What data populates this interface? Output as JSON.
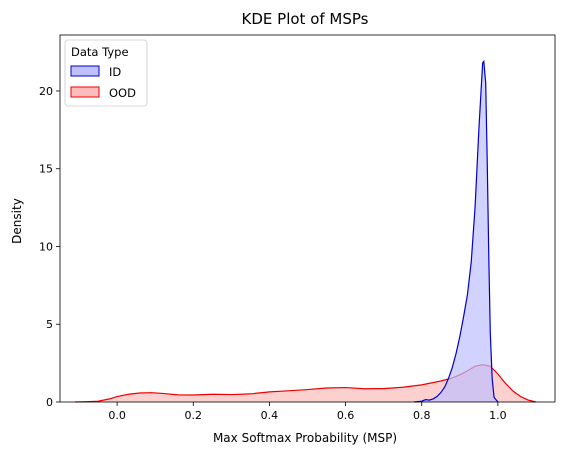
{
  "chart_data": {
    "type": "area",
    "title": "KDE Plot of MSPs",
    "xlabel": "Max Softmax Probability (MSP)",
    "ylabel": "Density",
    "xlim": [
      -0.15,
      1.15
    ],
    "ylim": [
      0,
      23.6
    ],
    "xticks": [
      {
        "value": 0.0,
        "label": "0.0"
      },
      {
        "value": 0.2,
        "label": "0.2"
      },
      {
        "value": 0.4,
        "label": "0.4"
      },
      {
        "value": 0.6,
        "label": "0.6"
      },
      {
        "value": 0.8,
        "label": "0.8"
      },
      {
        "value": 1.0,
        "label": "1.0"
      }
    ],
    "yticks": [
      {
        "value": 0,
        "label": "0"
      },
      {
        "value": 5,
        "label": "5"
      },
      {
        "value": 10,
        "label": "10"
      },
      {
        "value": 15,
        "label": "15"
      },
      {
        "value": 20,
        "label": "20"
      }
    ],
    "legend": {
      "title": "Data Type",
      "placement": "top-left"
    },
    "grid": false,
    "series": [
      {
        "name": "ID",
        "color": "#0000cc",
        "fill": "#bfbffe",
        "points": [
          [
            0.78,
            0.0
          ],
          [
            0.8,
            0.05
          ],
          [
            0.81,
            0.15
          ],
          [
            0.82,
            0.12
          ],
          [
            0.83,
            0.2
          ],
          [
            0.84,
            0.35
          ],
          [
            0.85,
            0.6
          ],
          [
            0.86,
            0.95
          ],
          [
            0.87,
            1.5
          ],
          [
            0.88,
            2.2
          ],
          [
            0.89,
            3.1
          ],
          [
            0.9,
            4.2
          ],
          [
            0.91,
            5.5
          ],
          [
            0.92,
            6.9
          ],
          [
            0.93,
            9.0
          ],
          [
            0.94,
            12.5
          ],
          [
            0.95,
            17.5
          ],
          [
            0.96,
            21.8
          ],
          [
            0.963,
            21.9
          ],
          [
            0.968,
            20.5
          ],
          [
            0.972,
            15.5
          ],
          [
            0.976,
            9.5
          ],
          [
            0.98,
            4.5
          ],
          [
            0.985,
            1.5
          ],
          [
            0.99,
            0.3
          ],
          [
            1.0,
            0.0
          ]
        ]
      },
      {
        "name": "OOD",
        "color": "#ee0000",
        "fill": "#fcbcbc",
        "points": [
          [
            -0.11,
            0.0
          ],
          [
            -0.08,
            0.02
          ],
          [
            -0.05,
            0.05
          ],
          [
            -0.02,
            0.2
          ],
          [
            0.0,
            0.35
          ],
          [
            0.03,
            0.5
          ],
          [
            0.06,
            0.58
          ],
          [
            0.09,
            0.6
          ],
          [
            0.12,
            0.55
          ],
          [
            0.16,
            0.46
          ],
          [
            0.2,
            0.45
          ],
          [
            0.25,
            0.5
          ],
          [
            0.3,
            0.48
          ],
          [
            0.35,
            0.52
          ],
          [
            0.4,
            0.65
          ],
          [
            0.45,
            0.72
          ],
          [
            0.5,
            0.8
          ],
          [
            0.55,
            0.9
          ],
          [
            0.6,
            0.93
          ],
          [
            0.65,
            0.85
          ],
          [
            0.7,
            0.86
          ],
          [
            0.75,
            0.95
          ],
          [
            0.8,
            1.1
          ],
          [
            0.85,
            1.35
          ],
          [
            0.88,
            1.55
          ],
          [
            0.9,
            1.75
          ],
          [
            0.92,
            2.0
          ],
          [
            0.94,
            2.3
          ],
          [
            0.96,
            2.4
          ],
          [
            0.98,
            2.3
          ],
          [
            1.0,
            1.8
          ],
          [
            1.02,
            1.2
          ],
          [
            1.04,
            0.7
          ],
          [
            1.06,
            0.35
          ],
          [
            1.08,
            0.12
          ],
          [
            1.1,
            0.0
          ]
        ]
      }
    ]
  }
}
